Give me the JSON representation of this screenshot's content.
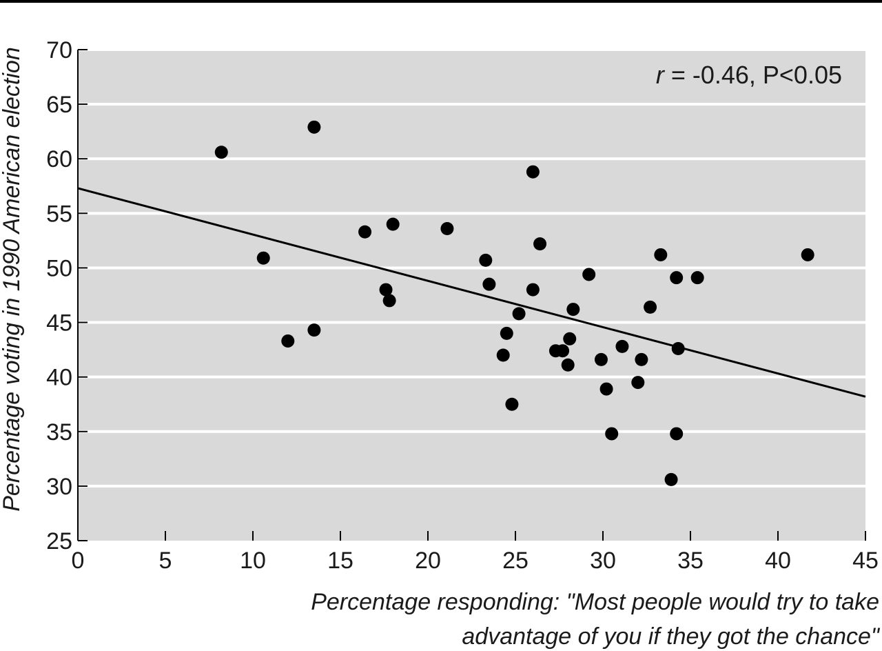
{
  "chart_data": {
    "type": "scatter",
    "xlabel_line1": "Percentage responding: \"Most people would try to take",
    "xlabel_line2": "advantage of you if they got the chance\"",
    "ylabel": "Percentage voting in 1990 American election",
    "xlim": [
      0,
      45
    ],
    "ylim": [
      25,
      70
    ],
    "xticks": [
      0,
      5,
      10,
      15,
      20,
      25,
      30,
      35,
      40,
      45
    ],
    "yticks": [
      25,
      30,
      35,
      40,
      45,
      50,
      55,
      60,
      65,
      70
    ],
    "grid": "horizontal",
    "annotation": {
      "r_symbol": "r",
      "text": " = -0.46, P<0.05"
    },
    "points": [
      [
        8.2,
        60.6
      ],
      [
        13.5,
        62.9
      ],
      [
        10.6,
        50.9
      ],
      [
        12.0,
        43.3
      ],
      [
        13.5,
        44.3
      ],
      [
        16.4,
        53.3
      ],
      [
        18.0,
        54.0
      ],
      [
        17.6,
        48.0
      ],
      [
        17.8,
        47.0
      ],
      [
        21.1,
        53.6
      ],
      [
        23.3,
        50.7
      ],
      [
        23.5,
        48.5
      ],
      [
        24.5,
        44.0
      ],
      [
        24.3,
        42.0
      ],
      [
        24.8,
        37.5
      ],
      [
        25.2,
        45.8
      ],
      [
        26.0,
        58.8
      ],
      [
        26.4,
        52.2
      ],
      [
        26.0,
        48.0
      ],
      [
        27.3,
        42.4
      ],
      [
        27.7,
        42.4
      ],
      [
        28.1,
        43.5
      ],
      [
        28.0,
        41.1
      ],
      [
        28.3,
        46.2
      ],
      [
        29.2,
        49.4
      ],
      [
        29.9,
        41.6
      ],
      [
        30.2,
        38.9
      ],
      [
        30.5,
        34.8
      ],
      [
        31.1,
        42.8
      ],
      [
        32.0,
        39.5
      ],
      [
        32.2,
        41.6
      ],
      [
        32.7,
        46.4
      ],
      [
        33.3,
        51.2
      ],
      [
        34.2,
        49.1
      ],
      [
        34.3,
        42.6
      ],
      [
        34.2,
        34.8
      ],
      [
        33.9,
        30.6
      ],
      [
        35.4,
        49.1
      ],
      [
        41.7,
        51.2
      ]
    ],
    "trendline": {
      "x": [
        0,
        45
      ],
      "y": [
        57.3,
        38.2
      ]
    }
  },
  "colors": {
    "plot_background": "#d9d9d9",
    "gridline": "#ffffff",
    "marker": "#000000",
    "trendline": "#000000",
    "frame": "#000000"
  }
}
